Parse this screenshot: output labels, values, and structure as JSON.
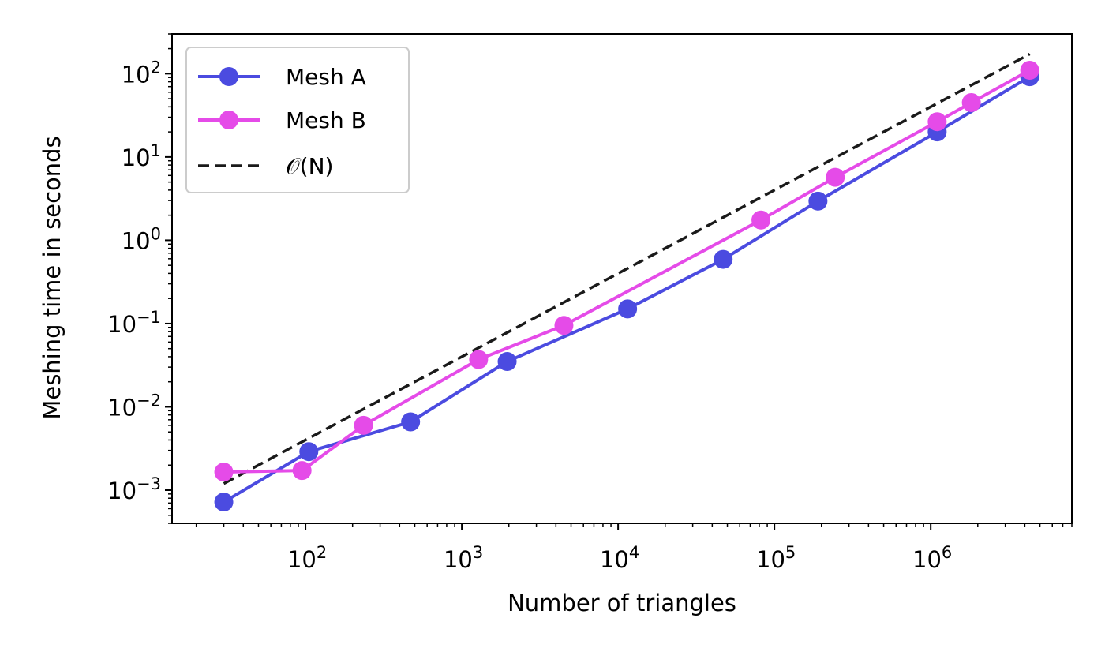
{
  "chart_data": {
    "type": "line",
    "xlabel": "Number of triangles",
    "ylabel": "Meshing time in seconds",
    "xscale": "log",
    "yscale": "log",
    "xlim": [
      14,
      8000000
    ],
    "ylim": [
      0.0004,
      300
    ],
    "grid": false,
    "legend_position": "top-left",
    "x_ticks": [
      {
        "value": 100,
        "base": "10",
        "exp": "2"
      },
      {
        "value": 1000,
        "base": "10",
        "exp": "3"
      },
      {
        "value": 10000,
        "base": "10",
        "exp": "4"
      },
      {
        "value": 100000,
        "base": "10",
        "exp": "5"
      },
      {
        "value": 1000000,
        "base": "10",
        "exp": "6"
      }
    ],
    "y_ticks": [
      {
        "value": 0.001,
        "base": "10",
        "exp": "−3"
      },
      {
        "value": 0.01,
        "base": "10",
        "exp": "−2"
      },
      {
        "value": 0.1,
        "base": "10",
        "exp": "−1"
      },
      {
        "value": 1,
        "base": "10",
        "exp": "0"
      },
      {
        "value": 10,
        "base": "10",
        "exp": "1"
      },
      {
        "value": 100,
        "base": "10",
        "exp": "2"
      }
    ],
    "series": [
      {
        "name": "Mesh A",
        "color": "#4b4be0",
        "style": "solid",
        "marker": "circle",
        "x": [
          30,
          105,
          470,
          1950,
          11500,
          47000,
          190000,
          1100000,
          4300000
        ],
        "y": [
          0.00072,
          0.0029,
          0.0066,
          0.035,
          0.15,
          0.59,
          2.95,
          20,
          92
        ]
      },
      {
        "name": "Mesh B",
        "color": "#e54be8",
        "style": "solid",
        "marker": "circle",
        "x": [
          30,
          95,
          235,
          1280,
          4500,
          82000,
          245000,
          1100000,
          1820000,
          4300000
        ],
        "y": [
          0.00165,
          0.00172,
          0.006,
          0.037,
          0.095,
          1.75,
          5.7,
          26.5,
          45,
          110
        ]
      },
      {
        "name": "𝒪(N)",
        "color": "#1a1a1a",
        "style": "dashed",
        "marker": "none",
        "x": [
          30,
          4300000
        ],
        "y": [
          0.0012,
          172
        ]
      }
    ]
  }
}
